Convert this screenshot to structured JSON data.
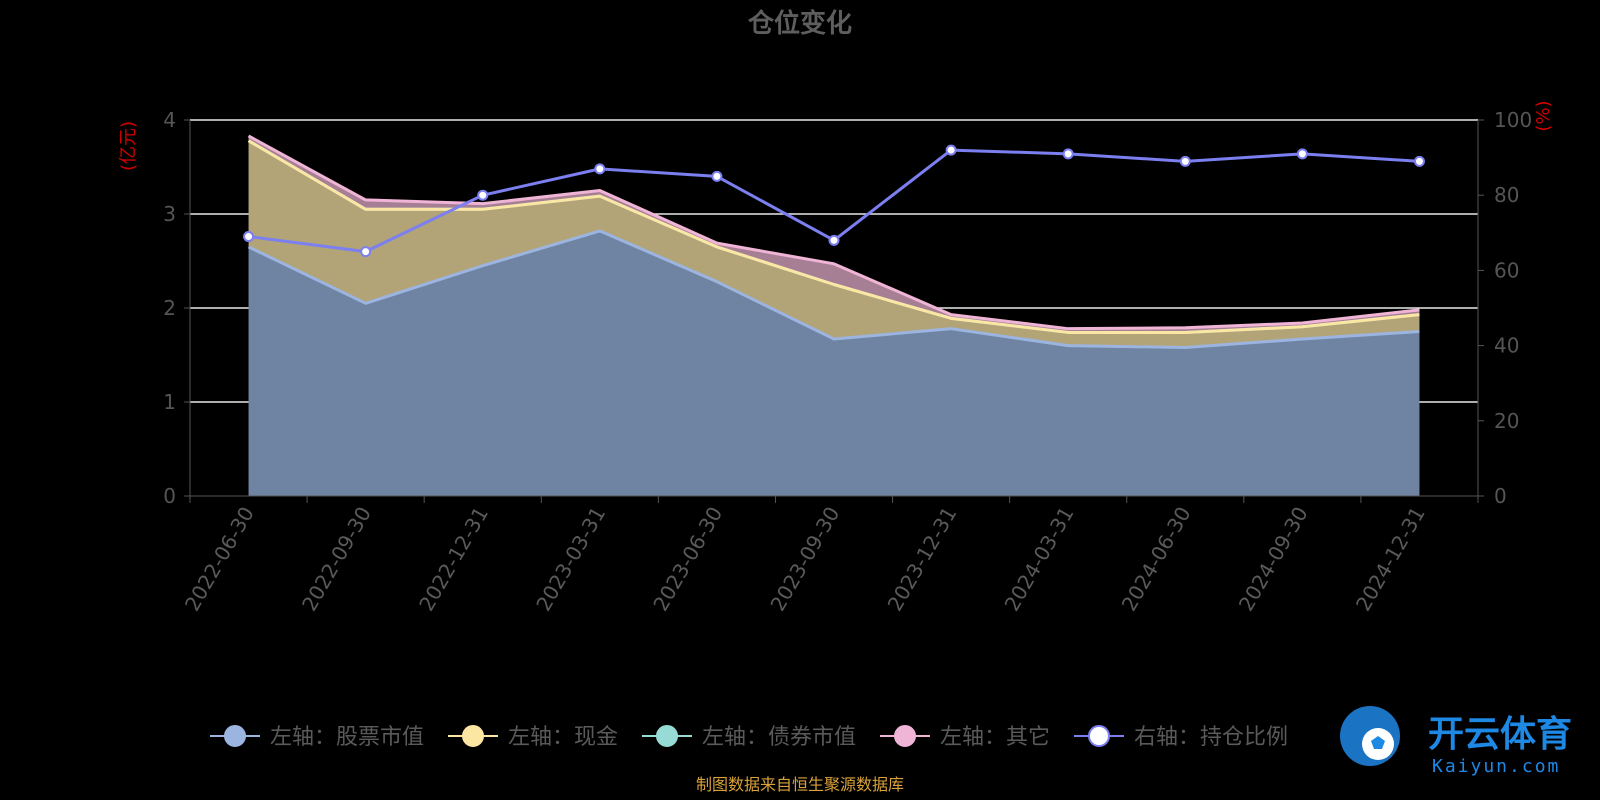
{
  "chart_data": {
    "type": "area",
    "title": "仓位变化",
    "left_unit": "(亿元)",
    "right_unit": "(%)",
    "categories": [
      "2022-06-30",
      "2022-09-30",
      "2022-12-31",
      "2023-03-31",
      "2023-06-30",
      "2023-09-30",
      "2023-12-31",
      "2024-03-31",
      "2024-06-30",
      "2024-09-30",
      "2024-12-31"
    ],
    "left_axis": {
      "min": 0,
      "max": 4,
      "ticks": [
        "0",
        "1",
        "2",
        "3",
        "4"
      ]
    },
    "right_axis": {
      "min": 0,
      "max": 100,
      "ticks": [
        "0",
        "20",
        "40",
        "60",
        "80",
        "100"
      ]
    },
    "series": [
      {
        "name": "左轴：股票市值",
        "axis": "left",
        "color": "#9cb4e0",
        "fill": "#6f84a3",
        "values": [
          2.65,
          2.05,
          2.45,
          2.82,
          2.28,
          1.67,
          1.78,
          1.6,
          1.58,
          1.67,
          1.75
        ]
      },
      {
        "name": "左轴：现金",
        "axis": "left",
        "color": "#fbe6a3",
        "fill": "#b2a477",
        "values": [
          1.13,
          1.0,
          0.6,
          0.37,
          0.37,
          0.58,
          0.11,
          0.14,
          0.16,
          0.13,
          0.18
        ]
      },
      {
        "name": "左轴：债券市值",
        "axis": "left",
        "color": "#96dbd6",
        "fill": "#7fb6b3",
        "values": [
          0,
          0,
          0,
          0,
          0,
          0,
          0,
          0,
          0,
          0,
          0
        ]
      },
      {
        "name": "左轴：其它",
        "axis": "left",
        "color": "#efb4d6",
        "fill": "#a77f95",
        "values": [
          0.05,
          0.1,
          0.06,
          0.06,
          0.04,
          0.22,
          0.04,
          0.04,
          0.05,
          0.04,
          0.05
        ]
      },
      {
        "name": "右轴：持仓比例",
        "axis": "right",
        "color": "#7b7ff0",
        "fill": "none",
        "values": [
          69,
          65,
          80,
          87,
          85,
          68,
          92,
          91,
          89,
          91,
          89
        ]
      }
    ],
    "grid": true,
    "legend_position": "bottom"
  },
  "source_note": "制图数据来自恒生聚源数据库",
  "watermark": {
    "title": "开云体育",
    "subtitle": "Kaiyun.com"
  }
}
